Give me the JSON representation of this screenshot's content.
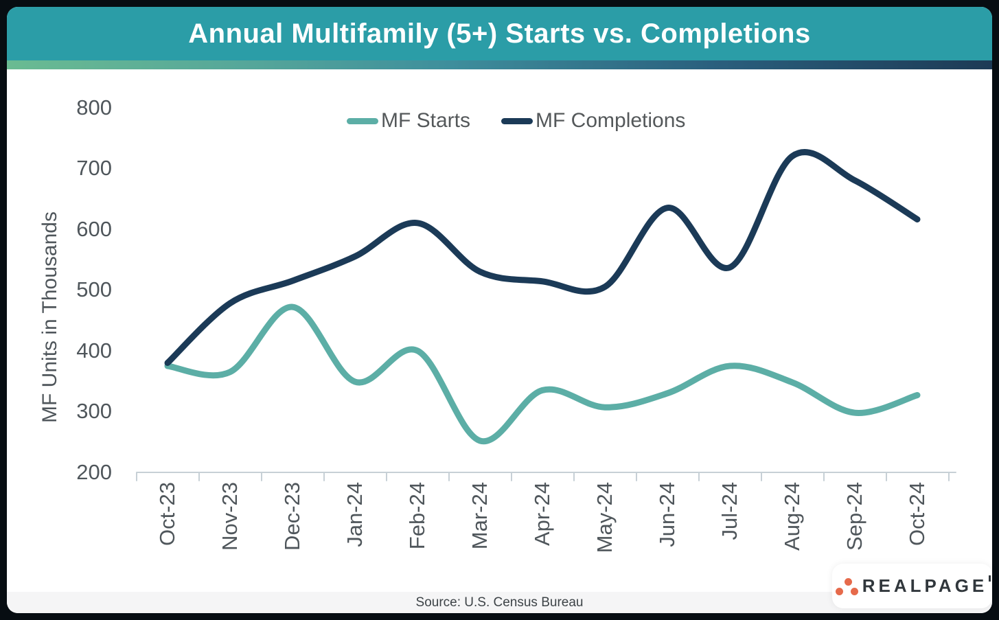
{
  "header": {
    "title": "Annual Multifamily (5+) Starts vs. Completions"
  },
  "legend": {
    "items": [
      {
        "label": "MF Starts",
        "color": "#5CAEA6"
      },
      {
        "label": "MF Completions",
        "color": "#1B3A57"
      }
    ]
  },
  "chart_data": {
    "type": "line",
    "title": "Annual Multifamily (5+) Starts vs. Completions",
    "categories": [
      "Oct-23",
      "Nov-23",
      "Dec-23",
      "Jan-24",
      "Feb-24",
      "Mar-24",
      "Apr-24",
      "May-24",
      "Jun-24",
      "Jul-24",
      "Aug-24",
      "Sep-24",
      "Oct-24"
    ],
    "series": [
      {
        "name": "MF Starts",
        "color": "#5CAEA6",
        "values": [
          375,
          365,
          472,
          349,
          400,
          252,
          335,
          307,
          330,
          375,
          348,
          298,
          327
        ]
      },
      {
        "name": "MF Completions",
        "color": "#1B3A57",
        "values": [
          380,
          478,
          515,
          555,
          610,
          530,
          514,
          505,
          635,
          537,
          720,
          680,
          616
        ]
      }
    ],
    "xlabel": "",
    "ylabel": "MF Units in Thousands",
    "ylim": [
      200,
      800
    ],
    "yticks": [
      200,
      300,
      400,
      500,
      600,
      700,
      800
    ],
    "grid": false,
    "legend_position": "top-center",
    "units": "thousands of units, annual rate"
  },
  "footer": {
    "source": "Source: U.S. Census Bureau"
  },
  "logo": {
    "text": "REALPAGE"
  },
  "colors": {
    "header_bg": "#2B9DA7",
    "title_text": "#FFFFFF",
    "line_starts": "#5CAEA6",
    "line_completions": "#1B3A57",
    "axis": "#C7D0D6",
    "tick_text": "#4F565B",
    "legend_text": "#54585A",
    "footer_bg": "#F5F5F6",
    "footer_text": "#3D4347",
    "frame": "#070D12",
    "logo_dot": "#E66A4B",
    "logo_text": "#31373C"
  }
}
